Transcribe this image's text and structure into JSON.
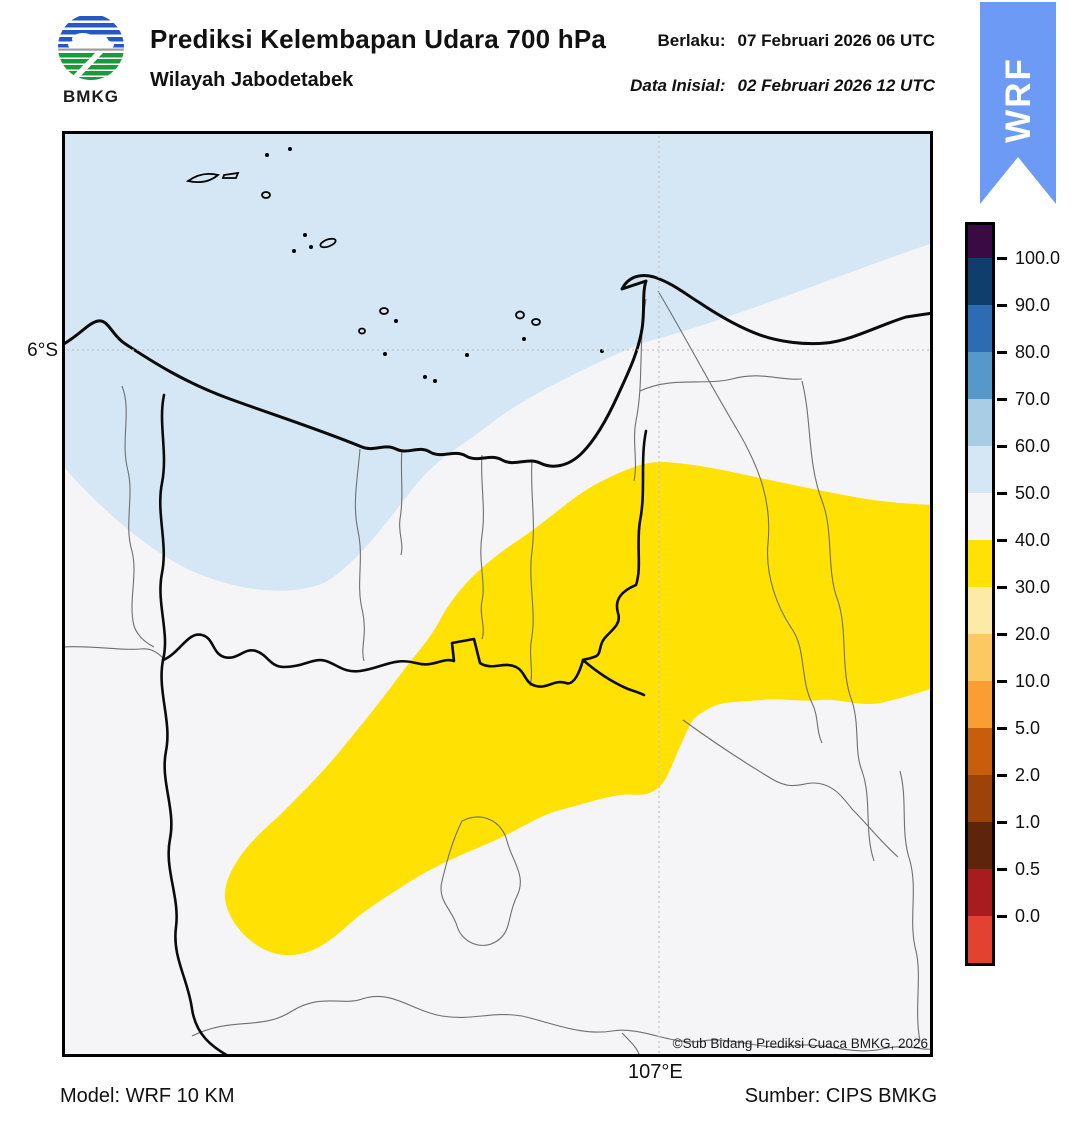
{
  "header": {
    "title": "Prediksi Kelembapan Udara 700 hPa",
    "subtitle": "Wilayah Jabodetabek",
    "valid_label": "Berlaku:",
    "valid_value": "07 Februari 2026 06 UTC",
    "init_label": "Data Inisial:",
    "init_value": "02 Februari 2026 12 UTC",
    "logo_text": "BMKG",
    "ribbon_label": "WRF"
  },
  "map": {
    "lat_tick": "6°S",
    "lon_tick": "107°E",
    "copyright": "©Sub Bidang Prediksi Cuaca BMKG, 2026",
    "fill_regions": [
      {
        "value_range": [
          50,
          60
        ],
        "color": "#d5e7f4"
      },
      {
        "value_range": [
          40,
          50
        ],
        "color": "#f5f4f6"
      },
      {
        "value_range": [
          30,
          40
        ],
        "color": "#ffe103"
      }
    ]
  },
  "colorbar": {
    "tick_labels": [
      "100.0",
      "90.0",
      "80.0",
      "70.0",
      "60.0",
      "50.0",
      "40.0",
      "30.0",
      "20.0",
      "10.0",
      "5.0",
      "2.0",
      "1.0",
      "0.5",
      "0.0"
    ],
    "segment_colors_top_to_bottom": [
      "#3a0a44",
      "#0f3d6c",
      "#2d6cb3",
      "#5598c9",
      "#a8cde4",
      "#d5e7f4",
      "#f5f4f6",
      "#ffe103",
      "#fdeaa6",
      "#fcc862",
      "#fa9d32",
      "#c75e0b",
      "#9d4309",
      "#5e250c",
      "#a81c20",
      "#e2422f"
    ]
  },
  "footer": {
    "model": "Model: WRF 10 KM",
    "source": "Sumber: CIPS BMKG"
  },
  "colors": {
    "ribbon_blue": "#6c9af5",
    "sea_band": "#d5e7f4",
    "land_band": "#f5f4f6",
    "dry_band": "#ffe103",
    "coast_line": "#0b0b0b",
    "admin_line": "#6f6f6f",
    "grid_line": "#c4c4c4",
    "logo_blue": "#2757c4",
    "logo_green": "#189b3c"
  }
}
